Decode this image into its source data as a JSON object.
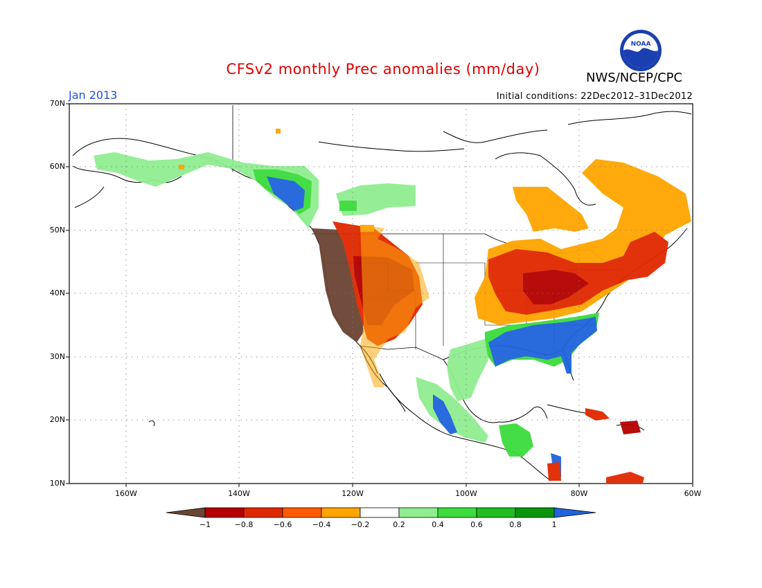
{
  "title": "CFSv2 monthly Prec anomalies (mm/day)",
  "title_color": "#e00000",
  "agency": "NWS/NCEP/CPC",
  "logo_icon": "noaa-logo",
  "period": "Jan 2013",
  "initial_conditions": "Initial conditions: 22Dec2012–31Dec2012",
  "lat_labels": [
    "70N",
    "60N",
    "50N",
    "40N",
    "30N",
    "20N",
    "10N"
  ],
  "lon_labels": [
    "160W",
    "140W",
    "120W",
    "100W",
    "80W",
    "60W"
  ],
  "colorbar": {
    "labels": [
      "−1",
      "−0.8",
      "−0.6",
      "−0.4",
      "−0.2",
      "0.2",
      "0.4",
      "0.6",
      "0.8",
      "1"
    ],
    "colors": [
      "#6b4433",
      "#b40000",
      "#e02800",
      "#ff5a00",
      "#ffa500",
      "#ffffff",
      "#90ee90",
      "#3cdc3c",
      "#1ebe1e",
      "#0a960a",
      "#1e64dc"
    ]
  }
}
